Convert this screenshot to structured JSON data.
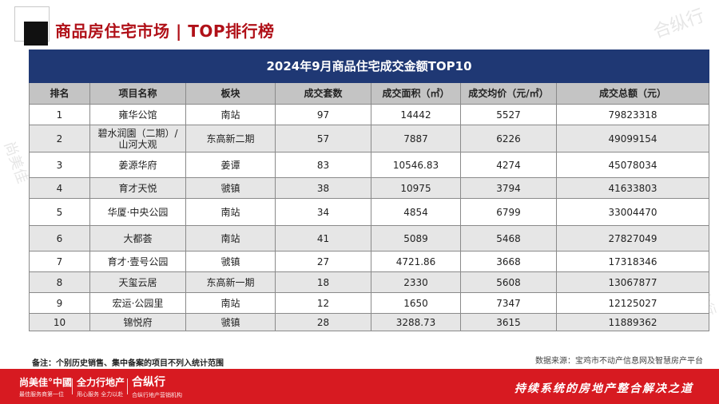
{
  "header": {
    "title": "商品房住宅市场 | TOP排行榜"
  },
  "watermarks": [
    "合纵行",
    "尚美佳",
    "全力行"
  ],
  "table": {
    "title": "2024年9月商品住宅成交金额TOP10",
    "columns": [
      "排名",
      "项目名称",
      "板块",
      "成交套数",
      "成交面积（㎡）",
      "成交均价（元/㎡）",
      "成交总额（元）"
    ],
    "rows": [
      [
        "1",
        "雍华公馆",
        "南站",
        "97",
        "14442",
        "5527",
        "79823318"
      ],
      [
        "2",
        "碧水润園（二期）/\n山河大观",
        "东高新二期",
        "57",
        "7887",
        "6226",
        "49099154"
      ],
      [
        "3",
        "姜源华府",
        "姜谭",
        "83",
        "10546.83",
        "4274",
        "45078034"
      ],
      [
        "4",
        "育才天悦",
        "虢镇",
        "38",
        "10975",
        "3794",
        "41633803"
      ],
      [
        "5",
        "华厦·中央公园",
        "南站",
        "34",
        "4854",
        "6799",
        "33004470"
      ],
      [
        "6",
        "大都荟",
        "南站",
        "41",
        "5089",
        "5468",
        "27827049"
      ],
      [
        "7",
        "育才·壹号公园",
        "虢镇",
        "27",
        "4721.86",
        "3668",
        "17318346"
      ],
      [
        "8",
        "天玺云居",
        "东高新一期",
        "18",
        "2330",
        "5608",
        "13067877"
      ],
      [
        "9",
        "宏运·公园里",
        "南站",
        "12",
        "1650",
        "7347",
        "12125027"
      ],
      [
        "10",
        "锦悦府",
        "虢镇",
        "28",
        "3288.73",
        "3615",
        "11889362"
      ]
    ]
  },
  "note": "备注：个别历史销售、集中备案的项目不列入统计范围",
  "source": "数据来源：宝鸡市不动产信息网及智慧房产平台",
  "footer": {
    "brand1": {
      "name": "尚美佳°中國",
      "tagline": "最佳服务商第一位"
    },
    "brand2": {
      "name": "全力行地产",
      "tagline": "用心服务 全力以赴"
    },
    "brand3": {
      "name": "合纵行",
      "tagline": "合纵行地产营销机构"
    },
    "slogan": "持续系统的房地产整合解决之道"
  },
  "colors": {
    "brand_red": "#d71a21",
    "title_red": "#b01018",
    "table_header_bg": "#1f3874"
  }
}
